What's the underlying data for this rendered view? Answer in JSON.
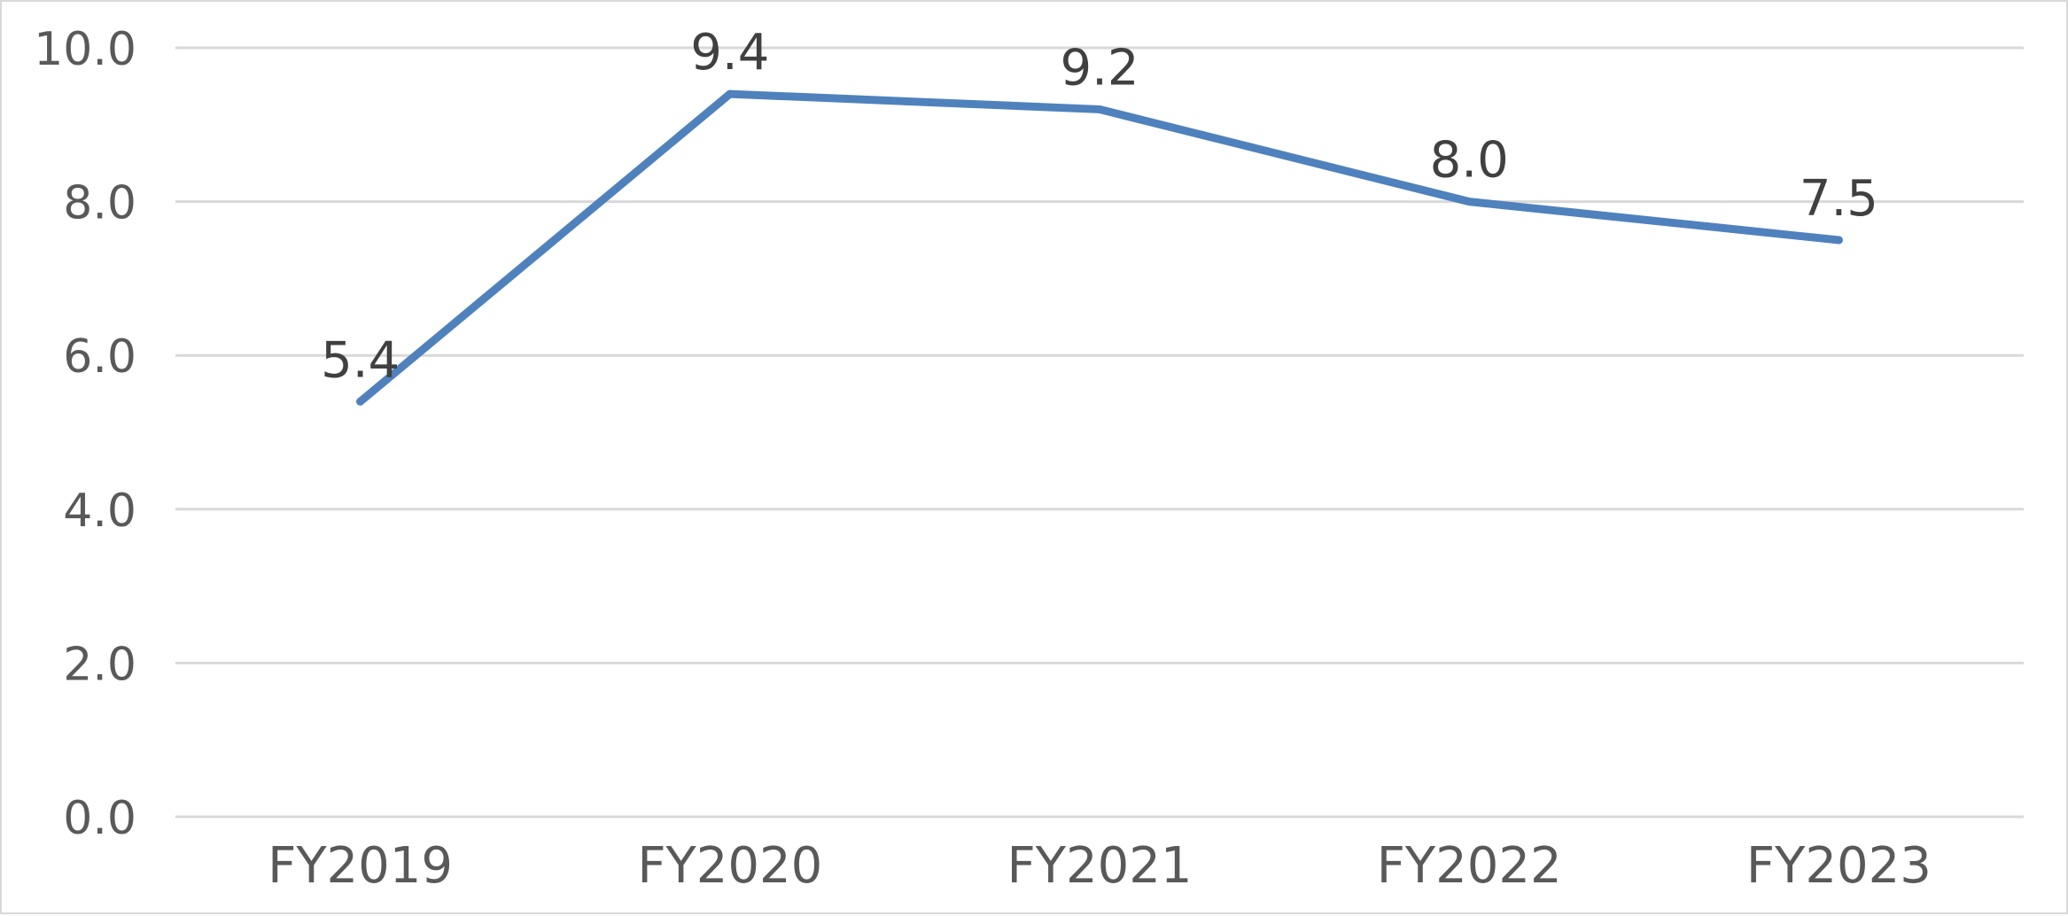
{
  "chart_data": {
    "type": "line",
    "title": "",
    "xlabel": "",
    "ylabel": "",
    "categories": [
      "FY2019",
      "FY2020",
      "FY2021",
      "FY2022",
      "FY2023"
    ],
    "series": [
      {
        "values": [
          5.4,
          9.4,
          9.2,
          8.0,
          7.5
        ],
        "color": "#4f81bd"
      }
    ],
    "data_labels": [
      "5.4",
      "9.4",
      "9.2",
      "8.0",
      "7.5"
    ],
    "y_ticks": [
      "0.0",
      "2.0",
      "4.0",
      "6.0",
      "8.0",
      "10.0"
    ],
    "ylim": [
      0,
      10
    ],
    "grid": true,
    "legend": "none",
    "gridline_color": "#d9d9d9",
    "axis_text_color": "#595959",
    "data_label_color": "#404040"
  }
}
